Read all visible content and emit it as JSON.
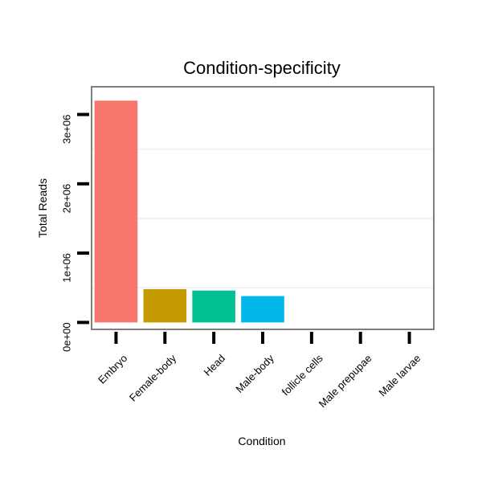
{
  "chart_data": {
    "type": "bar",
    "title": "Condition-specificity",
    "xlabel": "Condition",
    "ylabel": "Total Reads",
    "categories": [
      "Embryo",
      "Female-body",
      "Head",
      "Male-body",
      "follicle cells",
      "Male prepupae",
      "Male larvae"
    ],
    "values": [
      3200000,
      480000,
      460000,
      380000,
      0,
      0,
      0
    ],
    "colors": [
      "#F8766D",
      "#C49A00",
      "#00C094",
      "#00B6EB",
      "#A58AFF",
      "#FB61D7",
      "#53B400"
    ],
    "yticks": [
      0,
      1000000,
      2000000,
      3000000
    ],
    "ytick_labels": [
      "0e+00",
      "1e+06",
      "2e+06",
      "3e+06"
    ],
    "ylim": [
      -100000,
      3400000
    ],
    "grid": true,
    "panel_border_color": "#7f7f7f",
    "gridline_color": "#f2f2f2"
  }
}
